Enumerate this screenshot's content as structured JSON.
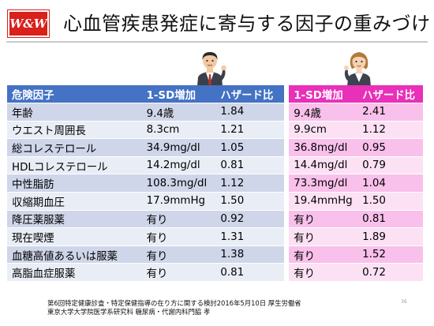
{
  "logo_text": "W&W",
  "title": "心血管疾患発症に寄与する因子の重みづけ",
  "table": {
    "headers": [
      "危険因子",
      "1-SD増加",
      "ハザード比",
      "1-SD増加",
      "ハザード比"
    ],
    "rows": [
      [
        "年齢",
        "9.4歳",
        "1.84",
        "9.4歳",
        "2.41"
      ],
      [
        "ウエスト周囲長",
        "8.3cm",
        "1.21",
        "9.9cm",
        "1.12"
      ],
      [
        "総コレステロール",
        "34.9mg/dl",
        "1.05",
        "36.8mg/dl",
        "0.95"
      ],
      [
        "HDLコレステロール",
        "14.2mg/dl",
        "0.81",
        "14.4mg/dl",
        "0.79"
      ],
      [
        "中性脂肪",
        "108.3mg/dl",
        "1.12",
        "73.3mg/dl",
        "1.04"
      ],
      [
        "収縮期血圧",
        "17.9mmHg",
        "1.50",
        "19.4mmHg",
        "1.50"
      ],
      [
        "降圧薬服薬",
        "有り",
        "0.92",
        "有り",
        "0.81"
      ],
      [
        "現在喫煙",
        "有り",
        "1.31",
        "有り",
        "1.89"
      ],
      [
        "血糖高値あるいは服薬",
        "有り",
        "1.38",
        "有り",
        "1.52"
      ],
      [
        "高脂血症服薬",
        "有り",
        "0.81",
        "有り",
        "0.72"
      ]
    ]
  },
  "footer": {
    "line1": "第6回特定健康診査・特定保健指導の在り方に関する検討2016年5月10日 厚生労働省",
    "line2": "東京大学大学院医学系研究科 糖尿病・代謝内科門脇 孝"
  },
  "page_number": "36",
  "colors": {
    "logo_red": "#d9201b",
    "male_header": "#4472c4",
    "female_header": "#e830b8",
    "male_row_dark": "#cfd6e9",
    "male_row_light": "#e9edf5",
    "female_row_dark": "#f8c0ea",
    "female_row_light": "#fce1f4"
  },
  "icons": [
    "male-businessman-icon",
    "female-businesswoman-icon"
  ]
}
